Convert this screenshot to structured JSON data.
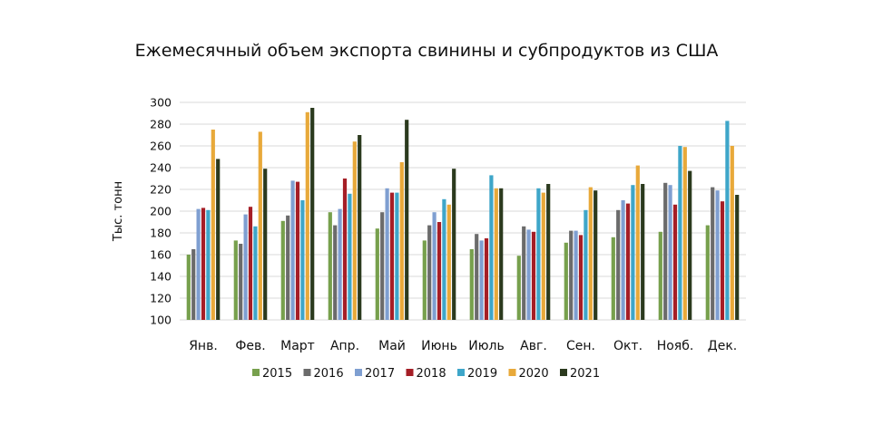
{
  "chart_data": {
    "type": "bar",
    "title": "Ежемесячный объем экспорта свинины и субпродуктов из США",
    "xlabel": "",
    "ylabel": "Тыс. тонн",
    "ylim": [
      100,
      300
    ],
    "yticks": [
      100,
      120,
      140,
      160,
      180,
      200,
      220,
      240,
      260,
      280,
      300
    ],
    "grid": true,
    "legend_position": "bottom",
    "categories": [
      "Янв.",
      "Фев.",
      "Март",
      "Апр.",
      "Май",
      "Июнь",
      "Июль",
      "Авг.",
      "Сен.",
      "Окт.",
      "Нояб.",
      "Дек."
    ],
    "series": [
      {
        "name": "2015",
        "color": "#77a04d",
        "values": [
          160,
          173,
          191,
          199,
          184,
          173,
          165,
          159,
          171,
          176,
          181,
          187
        ]
      },
      {
        "name": "2016",
        "color": "#6b6b6b",
        "values": [
          165,
          170,
          196,
          187,
          199,
          187,
          179,
          186,
          182,
          201,
          226,
          222
        ]
      },
      {
        "name": "2017",
        "color": "#7f9fd1",
        "values": [
          202,
          197,
          228,
          202,
          221,
          199,
          173,
          183,
          182,
          210,
          224,
          219
        ]
      },
      {
        "name": "2018",
        "color": "#a51e26",
        "values": [
          203,
          204,
          227,
          230,
          217,
          190,
          175,
          181,
          178,
          207,
          206,
          209
        ]
      },
      {
        "name": "2019",
        "color": "#3ea6c9",
        "values": [
          201,
          186,
          210,
          216,
          217,
          211,
          233,
          221,
          201,
          224,
          260,
          283
        ]
      },
      {
        "name": "2020",
        "color": "#e8a93a",
        "values": [
          275,
          273,
          291,
          264,
          245,
          206,
          221,
          217,
          222,
          242,
          259,
          260
        ]
      },
      {
        "name": "2021",
        "color": "#2b3a1e",
        "values": [
          248,
          239,
          295,
          270,
          284,
          239,
          221,
          225,
          219,
          225,
          237,
          215
        ]
      }
    ]
  }
}
